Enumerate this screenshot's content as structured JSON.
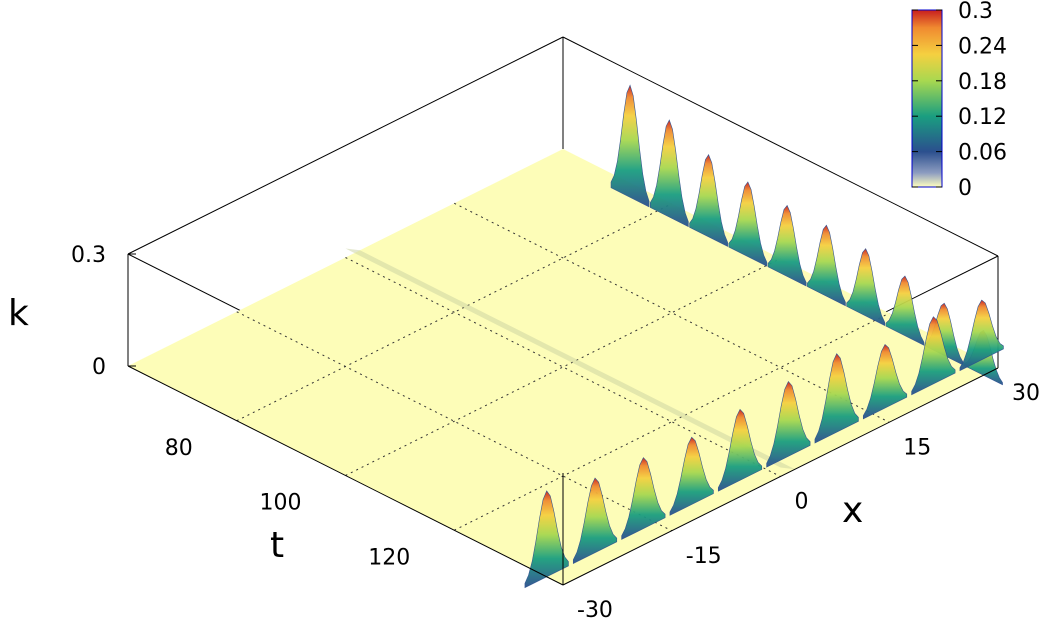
{
  "chart_data": {
    "type": "surface3d",
    "axes": {
      "x": {
        "label": "x",
        "ticks": [
          "-30",
          "-15",
          "0",
          "15",
          "30"
        ],
        "range": [
          -30,
          30
        ]
      },
      "t": {
        "label": "t",
        "ticks": [
          "80",
          "100",
          "120"
        ],
        "range": [
          60,
          140
        ]
      },
      "z": {
        "label": "k",
        "ticks": [
          "0",
          "0.3"
        ],
        "range": [
          0,
          0.3
        ]
      }
    },
    "colorbar": {
      "ticks": [
        "0.3",
        "0.24",
        "0.18",
        "0.12",
        "0.06",
        "0"
      ],
      "range": [
        0,
        0.3
      ],
      "colors": [
        "#ffffc0",
        "#2b4f8e",
        "#1a9e80",
        "#a8d850",
        "#f5d040",
        "#f08a30",
        "#c81e1e"
      ]
    },
    "features": {
      "wave_train_a": {
        "x": 30,
        "t_start": 75,
        "t_end": 140,
        "peaks": [
          0.3,
          0.26,
          0.22,
          0.2,
          0.19,
          0.19,
          0.18,
          0.16,
          0.14,
          0.12
        ]
      },
      "wave_train_b": {
        "t_start": 140,
        "x_start": -30,
        "x_end": 30,
        "peaks": [
          0.23,
          0.2,
          0.19,
          0.18,
          0.19,
          0.2,
          0.21,
          0.17,
          0.18,
          0.16
        ]
      },
      "ridge": {
        "x": 0,
        "t_start": 60,
        "t_end": 140,
        "max": 0.08
      }
    },
    "grid": true
  }
}
